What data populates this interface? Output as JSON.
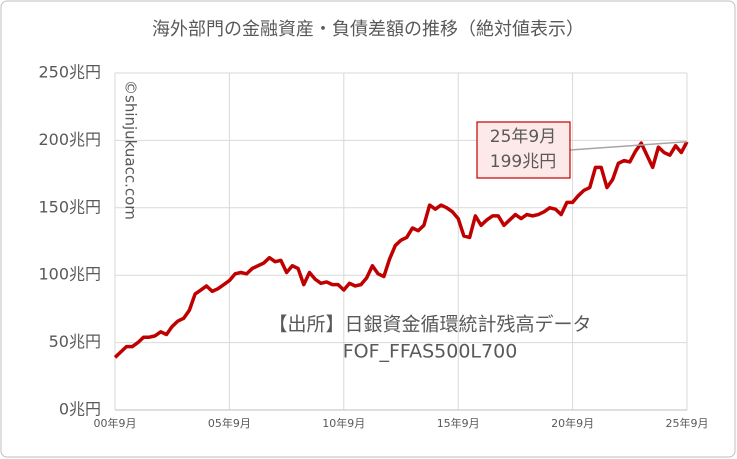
{
  "chart_data": {
    "type": "line",
    "title": "海外部門の金融資産・負債差額の推移（絶対値表示）",
    "categories": [
      "00年9月",
      null,
      null,
      null,
      null,
      null,
      null,
      null,
      null,
      null,
      null,
      null,
      null,
      null,
      null,
      null,
      null,
      null,
      null,
      null,
      "05年9月",
      null,
      null,
      null,
      null,
      null,
      null,
      null,
      null,
      null,
      null,
      null,
      null,
      null,
      null,
      null,
      null,
      null,
      null,
      null,
      "10年9月",
      null,
      null,
      null,
      null,
      null,
      null,
      null,
      null,
      null,
      null,
      null,
      null,
      null,
      null,
      null,
      null,
      null,
      null,
      null,
      "15年9月",
      null,
      null,
      null,
      null,
      null,
      null,
      null,
      null,
      null,
      null,
      null,
      null,
      null,
      null,
      null,
      null,
      null,
      null,
      null,
      "20年9月",
      null,
      null,
      null,
      null,
      null,
      null,
      null,
      null,
      null,
      null,
      null,
      null,
      null,
      null,
      null,
      null,
      null,
      null,
      null,
      "25年9月"
    ],
    "series": [
      {
        "color": "#c00000",
        "values": [
          39,
          43,
          47,
          47,
          50,
          54,
          54,
          55,
          58,
          56,
          62,
          66,
          68,
          74,
          86,
          89,
          92,
          88,
          90,
          93,
          96,
          101,
          102,
          101,
          105,
          107,
          109,
          113,
          110,
          111,
          102,
          107,
          105,
          93,
          102,
          97,
          94,
          95,
          93,
          93,
          89,
          94,
          92,
          93,
          98,
          107,
          101,
          99,
          112,
          122,
          126,
          128,
          135,
          133,
          137,
          152,
          149,
          152,
          150,
          147,
          142,
          129,
          128,
          144,
          137,
          141,
          144,
          144,
          137,
          141,
          145,
          142,
          145,
          144,
          145,
          147,
          150,
          149,
          145,
          154,
          154,
          159,
          163,
          165,
          180,
          180,
          165,
          171,
          183,
          185,
          184,
          192,
          198,
          189,
          180,
          195,
          191,
          189,
          196,
          191,
          199
        ]
      }
    ],
    "ylim": [
      0,
      250
    ],
    "yticks": [
      {
        "value": 0,
        "label": "0兆円"
      },
      {
        "value": 50,
        "label": "50兆円"
      },
      {
        "value": 100,
        "label": "100兆円"
      },
      {
        "value": 150,
        "label": "150兆円"
      },
      {
        "value": 200,
        "label": "200兆円"
      },
      {
        "value": 250,
        "label": "250兆円"
      }
    ],
    "grid": true,
    "annotation": [
      "25年9月",
      "199兆円"
    ],
    "source": [
      "【出所】日銀資金循環統計残高データ",
      "FOF_FFAS500L700"
    ],
    "watermark": "©shinjukuacc.com"
  }
}
